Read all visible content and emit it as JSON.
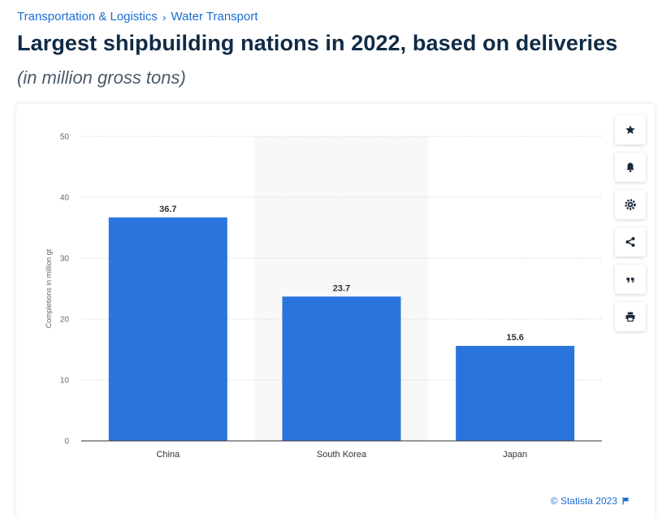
{
  "breadcrumb": {
    "items": [
      "Transportation & Logistics",
      "Water Transport"
    ],
    "separator": "›"
  },
  "header": {
    "title": "Largest shipbuilding nations in 2022, based on deliveries",
    "subtitle": "(in million gross tons)"
  },
  "toolbar": {
    "buttons": [
      {
        "name": "favorite",
        "icon": "star-icon"
      },
      {
        "name": "notification",
        "icon": "bell-icon"
      },
      {
        "name": "settings",
        "icon": "gear-icon"
      },
      {
        "name": "share",
        "icon": "share-icon"
      },
      {
        "name": "cite",
        "icon": "quote-icon"
      },
      {
        "name": "print",
        "icon": "print-icon"
      }
    ]
  },
  "footer": {
    "copyright": "© Statista 2023",
    "flag_icon": "flag-icon"
  },
  "colors": {
    "bar": "#2a75dd",
    "accent": "#1c6cd2",
    "title": "#0f2b46",
    "hover_band": "#f8f8f8"
  },
  "chart_data": {
    "type": "bar",
    "categories": [
      "China",
      "South Korea",
      "Japan"
    ],
    "values": [
      36.7,
      23.7,
      15.6
    ],
    "data_labels": [
      "36.7",
      "23.7",
      "15.6"
    ],
    "xlabel": "",
    "ylabel": "Completions in million gt",
    "ylim": [
      0,
      50
    ],
    "yticks": [
      0,
      10,
      20,
      30,
      40,
      50
    ],
    "grid": true,
    "highlighted_category": "South Korea"
  }
}
